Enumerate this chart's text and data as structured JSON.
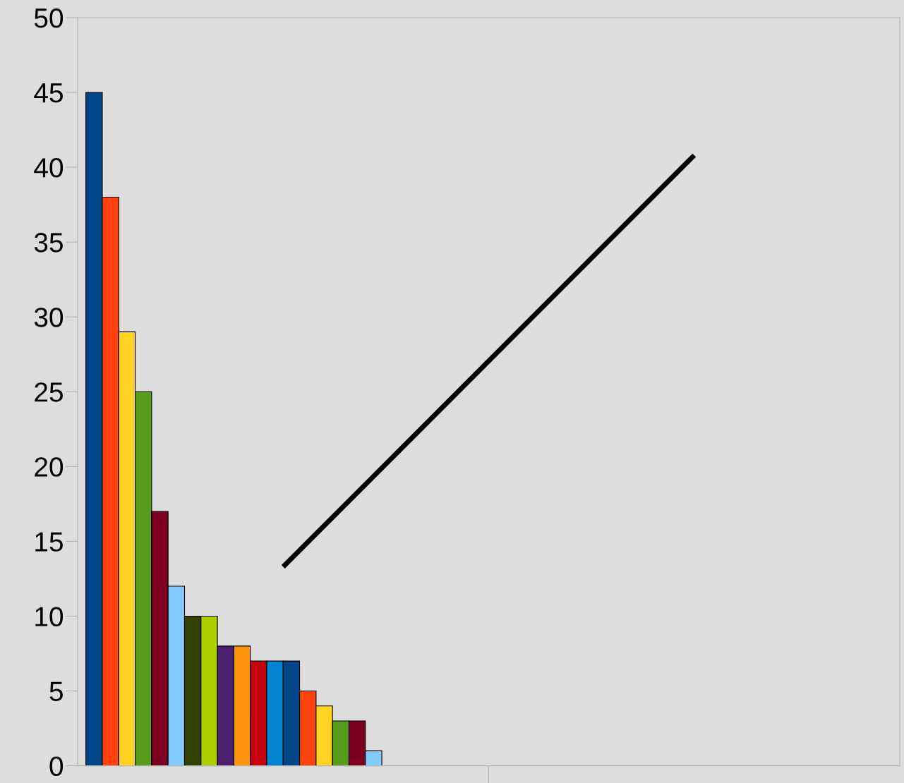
{
  "chart_data": {
    "type": "bar",
    "categories": [
      null,
      null
    ],
    "ylim": [
      0,
      50
    ],
    "yticks": [
      0,
      5,
      10,
      15,
      20,
      25,
      30,
      35,
      40,
      45,
      50
    ],
    "tick_labels": "y",
    "grid": false,
    "legend": false,
    "series": [
      {
        "color": "#004586",
        "values": [
          45,
          null
        ]
      },
      {
        "color": "#ff420e",
        "values": [
          38,
          null
        ]
      },
      {
        "color": "#ffd320",
        "values": [
          29,
          null
        ]
      },
      {
        "color": "#579d1c",
        "values": [
          25,
          null
        ]
      },
      {
        "color": "#7e0021",
        "values": [
          17,
          null
        ]
      },
      {
        "color": "#83caff",
        "values": [
          12,
          null
        ]
      },
      {
        "color": "#314004",
        "values": [
          10,
          null
        ]
      },
      {
        "color": "#aecf00",
        "values": [
          10,
          null
        ]
      },
      {
        "color": "#4b1f6f",
        "values": [
          8,
          null
        ]
      },
      {
        "color": "#ff950e",
        "values": [
          8,
          null
        ]
      },
      {
        "color": "#c5000b",
        "values": [
          7,
          null
        ]
      },
      {
        "color": "#0084d1",
        "values": [
          7,
          null
        ]
      },
      {
        "color": "#004586",
        "values": [
          7,
          null
        ]
      },
      {
        "color": "#ff420e",
        "values": [
          5,
          null
        ]
      },
      {
        "color": "#ffd320",
        "values": [
          4,
          null
        ]
      },
      {
        "color": "#579d1c",
        "values": [
          3,
          null
        ]
      },
      {
        "color": "#7e0021",
        "values": [
          3,
          null
        ]
      },
      {
        "color": "#83caff",
        "values": [
          1,
          null
        ]
      },
      {
        "type": "line",
        "color": "#000000",
        "values": [
          13.3,
          40.8
        ]
      }
    ]
  }
}
